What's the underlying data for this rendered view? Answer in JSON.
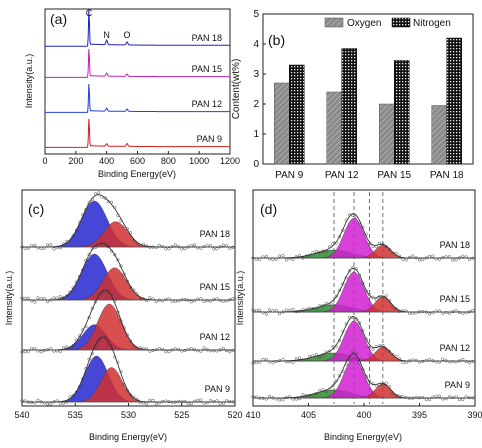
{
  "chart_data": [
    {
      "panel": "(a)",
      "type": "line",
      "xlabel": "Binding Energy(eV)",
      "ylabel": "Intensity(a.u.)",
      "xlim": [
        0,
        1200
      ],
      "x_ticks": [
        "0",
        "200",
        "400",
        "600",
        "800",
        "1000",
        "1200"
      ],
      "peak_labels": [
        {
          "label": "C",
          "x": 285
        },
        {
          "label": "N",
          "x": 400
        },
        {
          "label": "O",
          "x": 532
        }
      ],
      "series": [
        {
          "name": "PAN 18",
          "color": "#2020c0",
          "peaks": [
            {
              "x": 285,
              "h": 1.0
            },
            {
              "x": 400,
              "h": 0.12
            },
            {
              "x": 532,
              "h": 0.08
            }
          ]
        },
        {
          "name": "PAN 15",
          "color": "#c020c0",
          "peaks": [
            {
              "x": 285,
              "h": 1.0
            },
            {
              "x": 400,
              "h": 0.1
            },
            {
              "x": 532,
              "h": 0.08
            }
          ]
        },
        {
          "name": "PAN 12",
          "color": "#2040e0",
          "peaks": [
            {
              "x": 285,
              "h": 1.0
            },
            {
              "x": 400,
              "h": 0.1
            },
            {
              "x": 532,
              "h": 0.08
            }
          ]
        },
        {
          "name": "PAN 9",
          "color": "#d02020",
          "peaks": [
            {
              "x": 285,
              "h": 1.0
            },
            {
              "x": 400,
              "h": 0.08
            },
            {
              "x": 532,
              "h": 0.1
            }
          ]
        }
      ]
    },
    {
      "panel": "(b)",
      "type": "bar",
      "ylabel": "Content(wt%)",
      "ylim": [
        0,
        5
      ],
      "y_ticks": [
        "0",
        "1",
        "2",
        "3",
        "4",
        "5"
      ],
      "categories": [
        "PAN 9",
        "PAN 12",
        "PAN 15",
        "PAN 18"
      ],
      "series": [
        {
          "name": "Oxygen",
          "values": [
            2.7,
            2.4,
            2.0,
            1.95
          ]
        },
        {
          "name": "Nitrogen",
          "values": [
            3.3,
            3.85,
            3.45,
            4.2
          ]
        }
      ]
    },
    {
      "panel": "(c)",
      "type": "line",
      "xlabel": "Binding Energy(eV)",
      "ylabel": "Intensity(a.u.)",
      "xlim": [
        540,
        520
      ],
      "x_ticks": [
        "540",
        "535",
        "530",
        "525",
        "520"
      ],
      "series": [
        {
          "name": "PAN 18",
          "blue": {
            "center": 533.2,
            "h": 1.0,
            "w": 1.2
          },
          "red": {
            "center": 531.2,
            "h": 0.55,
            "w": 1.1
          }
        },
        {
          "name": "PAN 15",
          "blue": {
            "center": 533.2,
            "h": 1.0,
            "w": 1.2
          },
          "red": {
            "center": 531.3,
            "h": 0.7,
            "w": 1.1
          }
        },
        {
          "name": "PAN 12",
          "blue": {
            "center": 533.2,
            "h": 0.55,
            "w": 1.1
          },
          "red": {
            "center": 531.8,
            "h": 1.0,
            "w": 1.1
          }
        },
        {
          "name": "PAN 9",
          "blue": {
            "center": 533.0,
            "h": 1.0,
            "w": 1.1
          },
          "red": {
            "center": 531.6,
            "h": 0.75,
            "w": 1.0
          }
        }
      ]
    },
    {
      "panel": "(d)",
      "type": "line",
      "xlabel": "Binding Energy(eV)",
      "ylabel": "Intensity(a.u.)",
      "xlim": [
        410,
        390
      ],
      "x_ticks": [
        "410",
        "405",
        "400",
        "395",
        "390"
      ],
      "dashed_lines": [
        402.7,
        400.9,
        399.5,
        398.3
      ],
      "series": [
        {
          "name": "PAN 18",
          "green": {
            "center": 402.7,
            "h": 0.2,
            "w": 1.6
          },
          "magenta": {
            "center": 400.9,
            "h": 1.0,
            "w": 0.9
          },
          "red": {
            "center": 398.3,
            "h": 0.32,
            "w": 0.7
          }
        },
        {
          "name": "PAN 15",
          "green": {
            "center": 402.7,
            "h": 0.18,
            "w": 1.6
          },
          "magenta": {
            "center": 400.9,
            "h": 1.0,
            "w": 0.9
          },
          "red": {
            "center": 398.3,
            "h": 0.38,
            "w": 0.7
          }
        },
        {
          "name": "PAN 12",
          "green": {
            "center": 402.7,
            "h": 0.2,
            "w": 1.6
          },
          "magenta": {
            "center": 400.9,
            "h": 1.0,
            "w": 0.9
          },
          "red": {
            "center": 398.3,
            "h": 0.35,
            "w": 0.7
          }
        },
        {
          "name": "PAN 9",
          "green": {
            "center": 402.7,
            "h": 0.2,
            "w": 1.6
          },
          "magenta": {
            "center": 400.9,
            "h": 1.0,
            "w": 0.9
          },
          "red": {
            "center": 398.3,
            "h": 0.35,
            "w": 0.7
          }
        }
      ]
    }
  ]
}
